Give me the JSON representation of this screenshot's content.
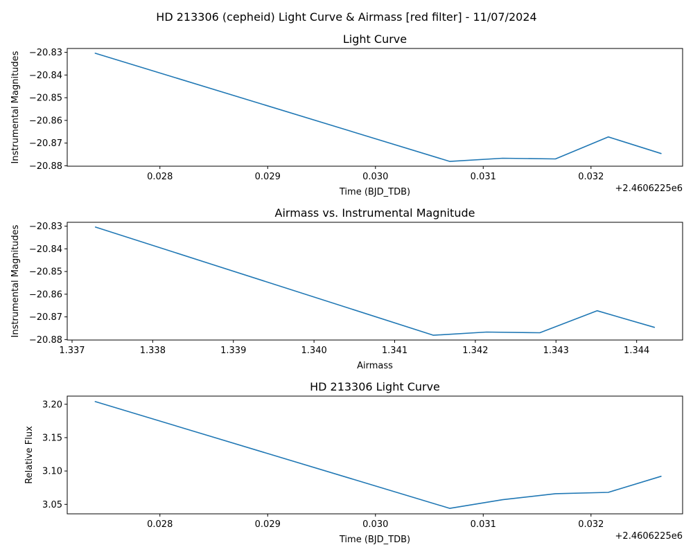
{
  "figure": {
    "suptitle": "HD 213306 (cepheid) Light Curve & Airmass [red filter] - 11/07/2024",
    "line_color": "#1f77b4"
  },
  "chart_data": [
    {
      "type": "line",
      "title": "Light Curve",
      "xlabel": "Time (BJD_TDB)",
      "ylabel": "Instrumental Magnitudes",
      "x_offset_label": "+2.4606225e6",
      "x_scale": "linear",
      "xlim": [
        0.02714,
        0.03285
      ],
      "ylim": [
        -20.8802,
        -20.8283
      ],
      "xticks": [
        0.028,
        0.029,
        0.03,
        0.031,
        0.032
      ],
      "xtick_labels": [
        "0.028",
        "0.029",
        "0.030",
        "0.031",
        "0.032"
      ],
      "yticks": [
        -20.83,
        -20.84,
        -20.85,
        -20.86,
        -20.87,
        -20.88
      ],
      "ytick_labels": [
        "−20.83",
        "−20.84",
        "−20.85",
        "−20.86",
        "−20.87",
        "−20.88"
      ],
      "grid": false,
      "series": [
        {
          "x": [
            0.0274,
            0.03069,
            0.03118,
            0.03167,
            0.03216,
            0.03265
          ],
          "y": [
            -20.8304,
            -20.8781,
            -20.8767,
            -20.877,
            -20.8673,
            -20.8746
          ]
        }
      ]
    },
    {
      "type": "line",
      "title": "Airmass vs. Instrumental Magnitude",
      "xlabel": "Airmass",
      "ylabel": "Instrumental Magnitudes",
      "x_scale": "linear",
      "xlim": [
        1.33694,
        1.34457
      ],
      "ylim": [
        -20.8802,
        -20.8283
      ],
      "xticks": [
        1.337,
        1.338,
        1.339,
        1.34,
        1.341,
        1.342,
        1.343,
        1.344
      ],
      "xtick_labels": [
        "1.337",
        "1.338",
        "1.339",
        "1.340",
        "1.341",
        "1.342",
        "1.343",
        "1.344"
      ],
      "yticks": [
        -20.83,
        -20.84,
        -20.85,
        -20.86,
        -20.87,
        -20.88
      ],
      "ytick_labels": [
        "−20.83",
        "−20.84",
        "−20.85",
        "−20.86",
        "−20.87",
        "−20.88"
      ],
      "grid": false,
      "series": [
        {
          "x": [
            1.33729,
            1.34148,
            1.34214,
            1.3428,
            1.34351,
            1.34422
          ],
          "y": [
            -20.8304,
            -20.8781,
            -20.8767,
            -20.877,
            -20.8673,
            -20.8746
          ]
        }
      ]
    },
    {
      "type": "line",
      "title": "HD 213306 Light Curve",
      "xlabel": "Time (BJD_TDB)",
      "ylabel": "Relative Flux",
      "x_offset_label": "+2.4606225e6",
      "x_scale": "linear",
      "xlim": [
        0.02714,
        0.03285
      ],
      "ylim": [
        3.0358,
        3.2122
      ],
      "xticks": [
        0.028,
        0.029,
        0.03,
        0.031,
        0.032
      ],
      "xtick_labels": [
        "0.028",
        "0.029",
        "0.030",
        "0.031",
        "0.032"
      ],
      "yticks": [
        3.05,
        3.1,
        3.15,
        3.2
      ],
      "ytick_labels": [
        "3.05",
        "3.10",
        "3.15",
        "3.20"
      ],
      "grid": false,
      "series": [
        {
          "x": [
            0.0274,
            0.03069,
            0.03118,
            0.03167,
            0.03216,
            0.03265
          ],
          "y": [
            3.204,
            3.044,
            3.057,
            3.066,
            3.068,
            3.092
          ]
        }
      ]
    }
  ]
}
